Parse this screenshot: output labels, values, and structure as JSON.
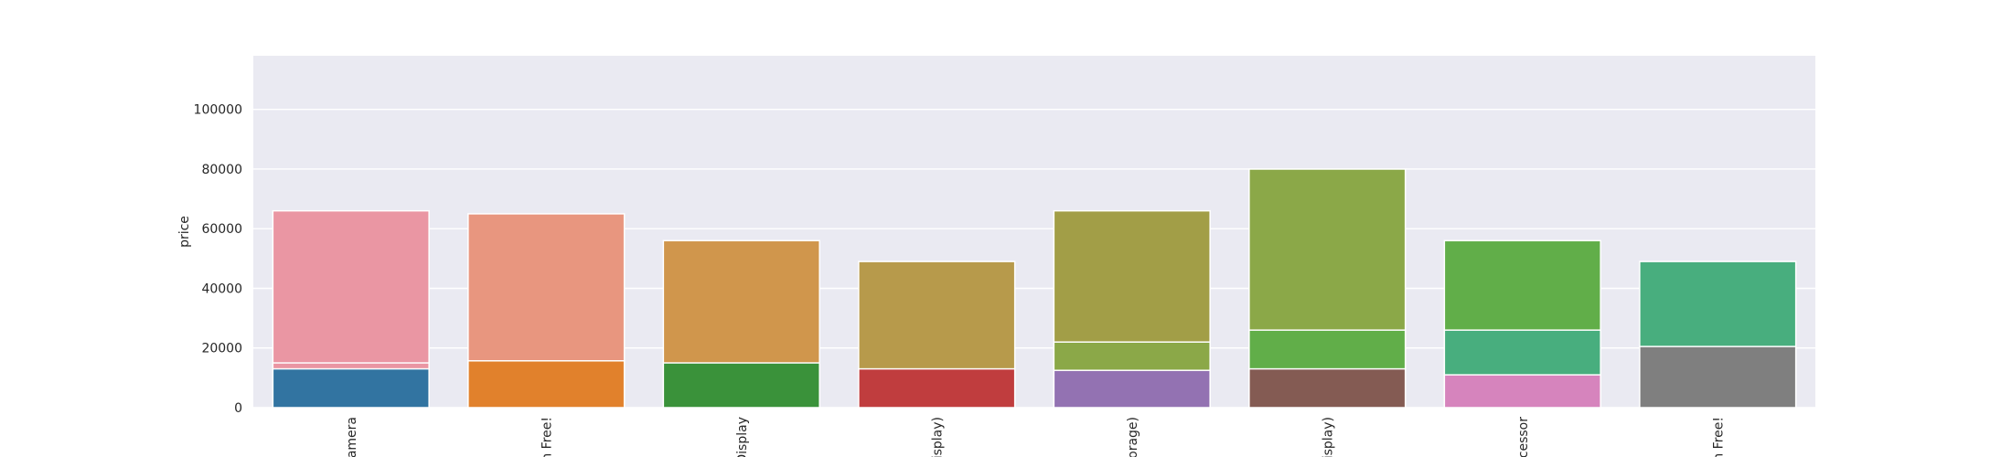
{
  "chart_data": {
    "type": "bar",
    "style": "overlapping bars (seaborn darkgrid)",
    "categories": [
      "amera",
      "n Free!",
      "Display",
      "isplay)",
      "orage)",
      "isplay)",
      "cessor",
      "n Free!"
    ],
    "ylabel": "price",
    "xlabel": "",
    "ylim": [
      0,
      118000
    ],
    "yticks": [
      0,
      20000,
      40000,
      60000,
      80000,
      100000
    ],
    "grid": true,
    "background": "#eaeaf2",
    "layers": [
      {
        "values": [
          66000,
          65000,
          56000,
          49000,
          66000,
          80000,
          56000,
          49000
        ],
        "colors": [
          "#ea96a3",
          "#e8967f",
          "#d0964c",
          "#b79a4b",
          "#a29e47",
          "#8ba848",
          "#61ae49",
          "#48ae7e"
        ]
      },
      {
        "values": [
          15000,
          null,
          null,
          null,
          22000,
          26000,
          26000,
          null
        ],
        "colors": [
          "#ea96a3",
          null,
          null,
          null,
          "#8ba848",
          "#61ae49",
          "#48ae7e",
          null
        ]
      },
      {
        "values": [
          13000,
          15700,
          15000,
          13000,
          12500,
          13000,
          11000,
          20500
        ],
        "colors": [
          "#3274a1",
          "#e1812c",
          "#3a923a",
          "#c03d3e",
          "#9372b2",
          "#845b53",
          "#d684bd",
          "#7f7f7f"
        ]
      }
    ]
  }
}
